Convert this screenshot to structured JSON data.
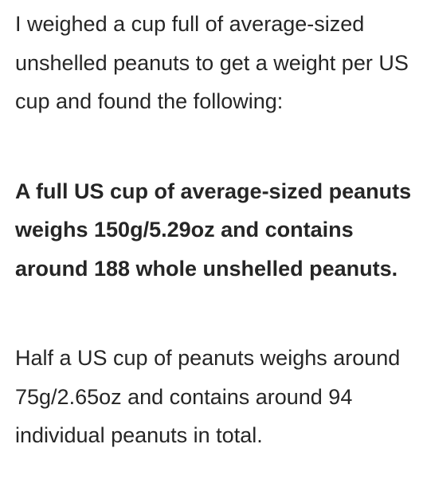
{
  "article": {
    "paragraphs": [
      {
        "text": "I weighed a cup full of average-sized unshelled peanuts to get a weight per US cup and found the following:",
        "bold": false
      },
      {
        "text": "A full US cup of average-sized peanuts weighs 150g/5.29oz and contains around 188 whole unshelled peanuts.",
        "bold": true
      },
      {
        "text": "Half a US cup of peanuts weighs around 75g/2.65oz and contains around 94 individual peanuts in total.",
        "bold": false
      }
    ]
  },
  "colors": {
    "text": "#262626",
    "background": "#ffffff"
  }
}
